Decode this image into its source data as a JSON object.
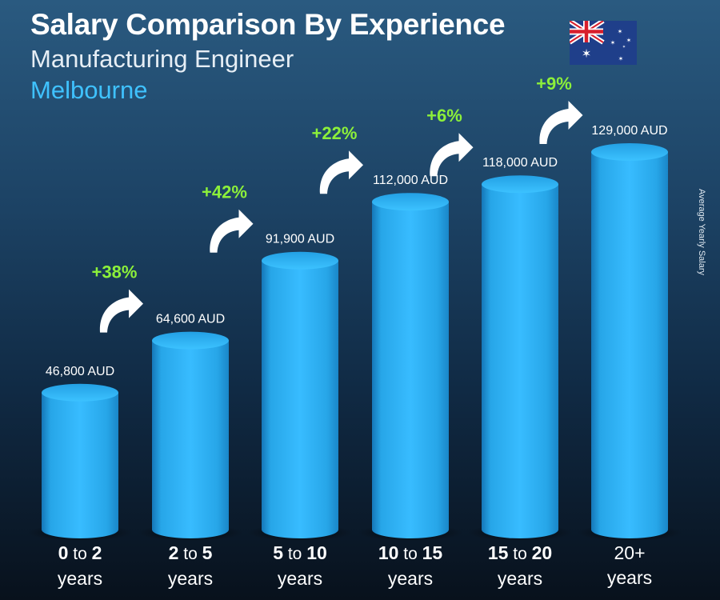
{
  "header": {
    "title": "Salary Comparison By Experience",
    "subtitle": "Manufacturing Engineer",
    "city": "Melbourne",
    "flag_icon": "australia-flag-icon"
  },
  "side_label": "Average Yearly Salary",
  "chart_data": {
    "type": "bar",
    "title": "Salary Comparison By Experience",
    "ylabel": "Average Yearly Salary",
    "currency": "AUD",
    "categories": [
      "0 to 2 years",
      "2 to 5 years",
      "5 to 10 years",
      "10 to 15 years",
      "15 to 20 years",
      "20+ years"
    ],
    "category_parts": [
      {
        "from": "0",
        "to": "2",
        "unit": "years"
      },
      {
        "from": "2",
        "to": "5",
        "unit": "years"
      },
      {
        "from": "5",
        "to": "10",
        "unit": "years"
      },
      {
        "from": "10",
        "to": "15",
        "unit": "years"
      },
      {
        "from": "15",
        "to": "20",
        "unit": "years"
      },
      {
        "from": "20+",
        "to": "",
        "unit": "years"
      }
    ],
    "values": [
      46800,
      64600,
      91900,
      112000,
      118000,
      129000
    ],
    "value_labels": [
      "46,800 AUD",
      "64,600 AUD",
      "91,900 AUD",
      "112,000 AUD",
      "118,000 AUD",
      "129,000 AUD"
    ],
    "increases": [
      "+38%",
      "+42%",
      "+22%",
      "+6%",
      "+9%"
    ],
    "connector_word": "to",
    "colors": {
      "bar": "#29b0f0",
      "bar_light": "#5ccbff",
      "bar_dark": "#1577b8",
      "increase_text": "#8cf03a",
      "arrow": "#ffffff"
    }
  }
}
